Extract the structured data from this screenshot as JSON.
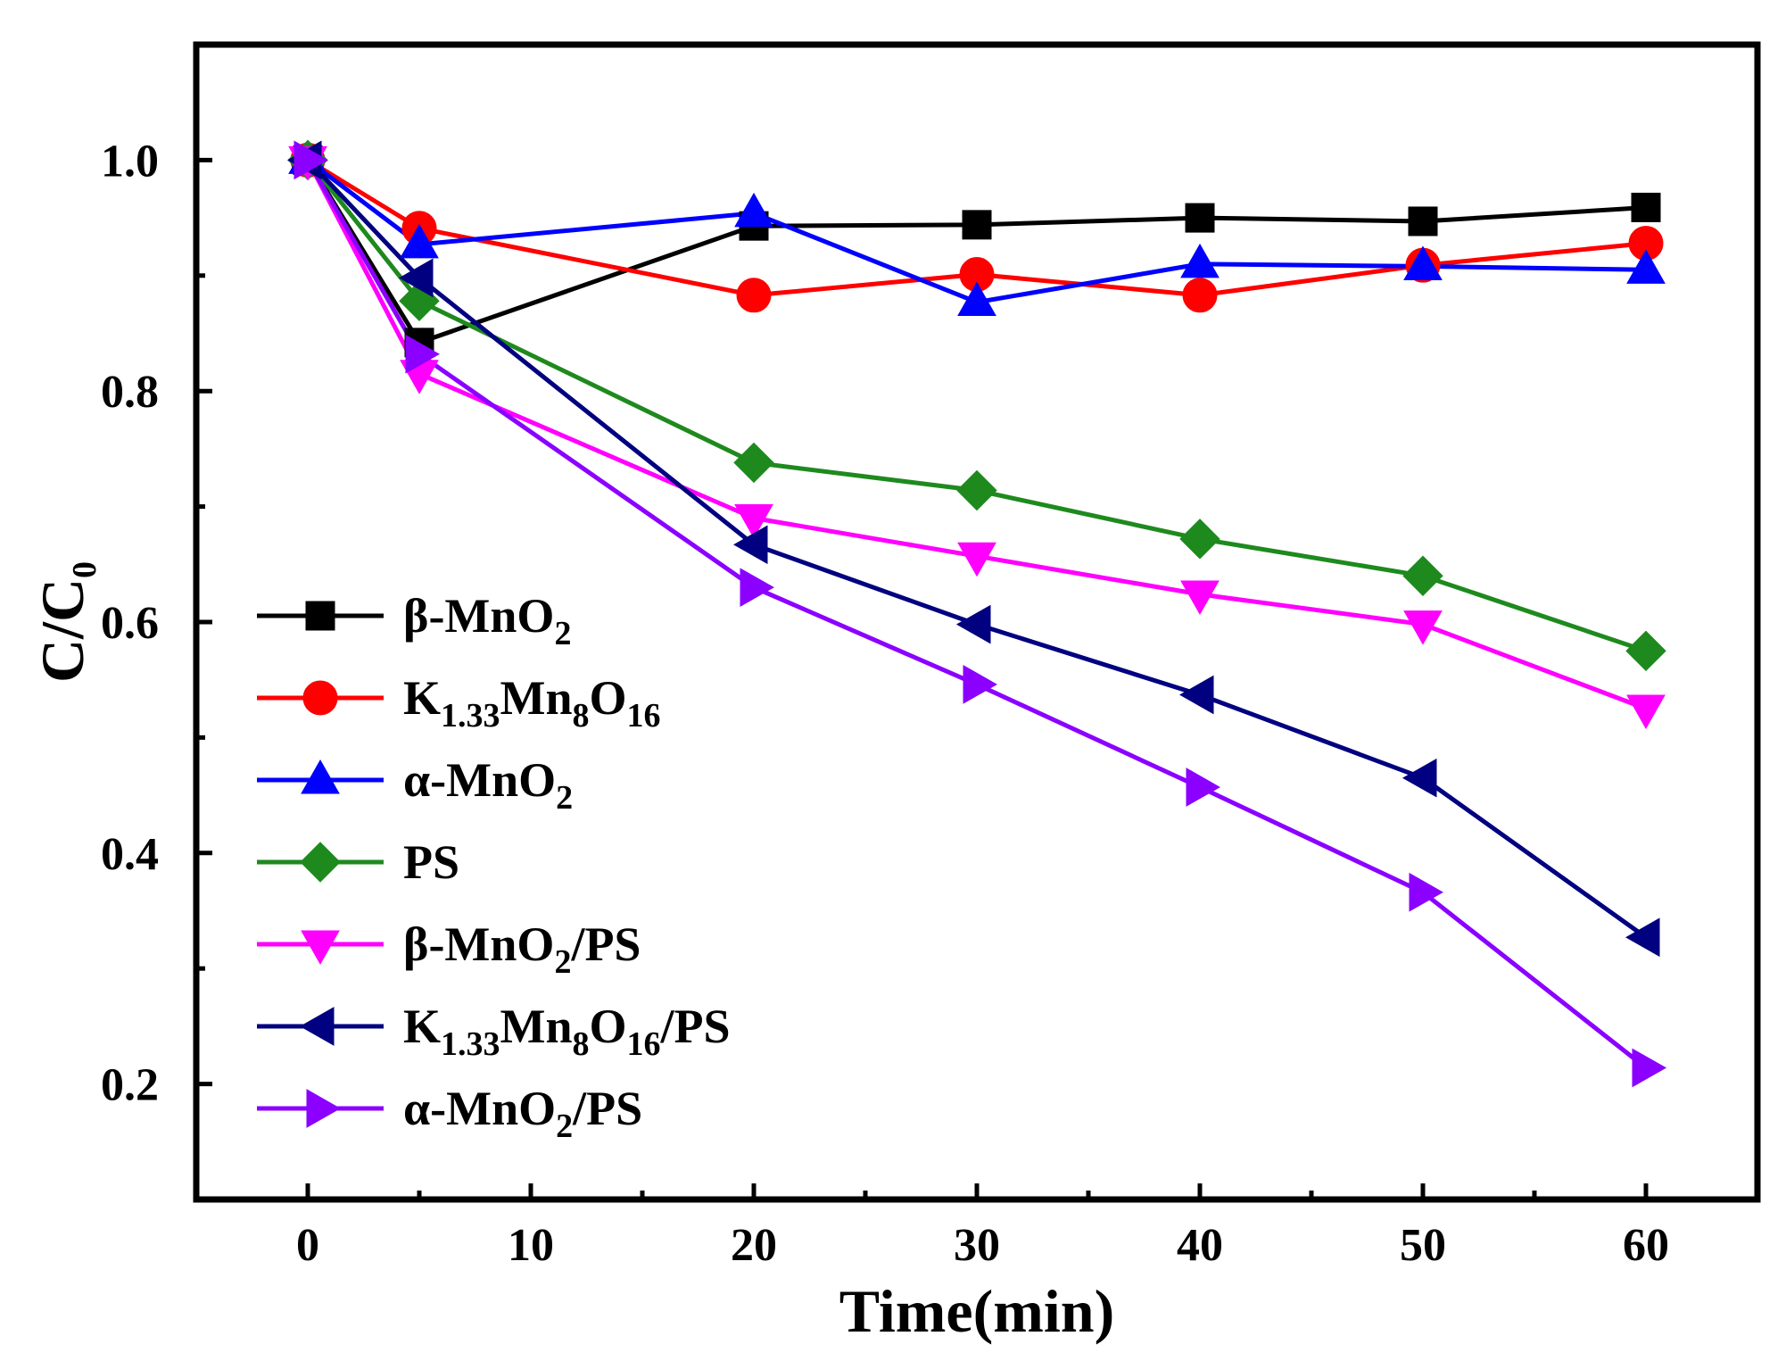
{
  "chart_data": {
    "type": "line",
    "xlabel": "Time(min)",
    "ylabel": {
      "main": "C/C",
      "sub": "0"
    },
    "xlim": [
      -5,
      65
    ],
    "ylim": [
      0.1,
      1.1
    ],
    "xticks": [
      0,
      10,
      20,
      30,
      40,
      50,
      60
    ],
    "yticks": [
      0.2,
      0.4,
      0.6,
      0.8,
      1.0
    ],
    "xtick_labels": [
      "0",
      "10",
      "20",
      "30",
      "40",
      "50",
      "60"
    ],
    "ytick_labels": [
      "0.2",
      "0.4",
      "0.6",
      "0.8",
      "1.0"
    ],
    "legend_position": "left",
    "x": [
      0,
      5,
      20,
      30,
      40,
      50,
      60
    ],
    "series": [
      {
        "name": "β-MnO2",
        "label_parts": [
          {
            "t": "β-MnO"
          },
          {
            "t": "2",
            "sub": true
          }
        ],
        "color": "#000000",
        "marker": "square",
        "values": [
          1.0,
          0.842,
          0.943,
          0.944,
          0.95,
          0.947,
          0.959
        ]
      },
      {
        "name": "K1.33Mn8O16",
        "label_parts": [
          {
            "t": "K"
          },
          {
            "t": "1.33",
            "sub": true
          },
          {
            "t": "Mn"
          },
          {
            "t": "8",
            "sub": true
          },
          {
            "t": "O"
          },
          {
            "t": "16",
            "sub": true
          }
        ],
        "color": "#ff0000",
        "marker": "circle",
        "values": [
          1.0,
          0.941,
          0.883,
          0.901,
          0.883,
          0.909,
          0.928
        ]
      },
      {
        "name": "α-MnO2",
        "label_parts": [
          {
            "t": "α-MnO"
          },
          {
            "t": "2",
            "sub": true
          }
        ],
        "color": "#0000ff",
        "marker": "triangle-up",
        "values": [
          1.0,
          0.927,
          0.954,
          0.877,
          0.91,
          0.908,
          0.905
        ]
      },
      {
        "name": "PS",
        "label_parts": [
          {
            "t": "PS"
          }
        ],
        "color": "#1e8a1e",
        "marker": "diamond",
        "values": [
          1.0,
          0.878,
          0.738,
          0.714,
          0.672,
          0.64,
          0.575
        ]
      },
      {
        "name": "β-MnO2/PS",
        "label_parts": [
          {
            "t": "β-MnO"
          },
          {
            "t": "2",
            "sub": true
          },
          {
            "t": "/PS"
          }
        ],
        "color": "#ff00ff",
        "marker": "triangle-down",
        "values": [
          1.0,
          0.815,
          0.69,
          0.657,
          0.624,
          0.598,
          0.525
        ]
      },
      {
        "name": "K1.33Mn8O16/PS",
        "label_parts": [
          {
            "t": "K"
          },
          {
            "t": "1.33",
            "sub": true
          },
          {
            "t": "Mn"
          },
          {
            "t": "8",
            "sub": true
          },
          {
            "t": "O"
          },
          {
            "t": "16",
            "sub": true
          },
          {
            "t": "/PS"
          }
        ],
        "color": "#000080",
        "marker": "triangle-left",
        "values": [
          1.0,
          0.898,
          0.667,
          0.598,
          0.537,
          0.465,
          0.327
        ]
      },
      {
        "name": "α-MnO2/PS",
        "label_parts": [
          {
            "t": "α-MnO"
          },
          {
            "t": "2",
            "sub": true
          },
          {
            "t": "/PS"
          }
        ],
        "color": "#8b00ff",
        "marker": "triangle-right",
        "values": [
          1.0,
          0.832,
          0.63,
          0.546,
          0.457,
          0.366,
          0.214
        ]
      }
    ]
  }
}
